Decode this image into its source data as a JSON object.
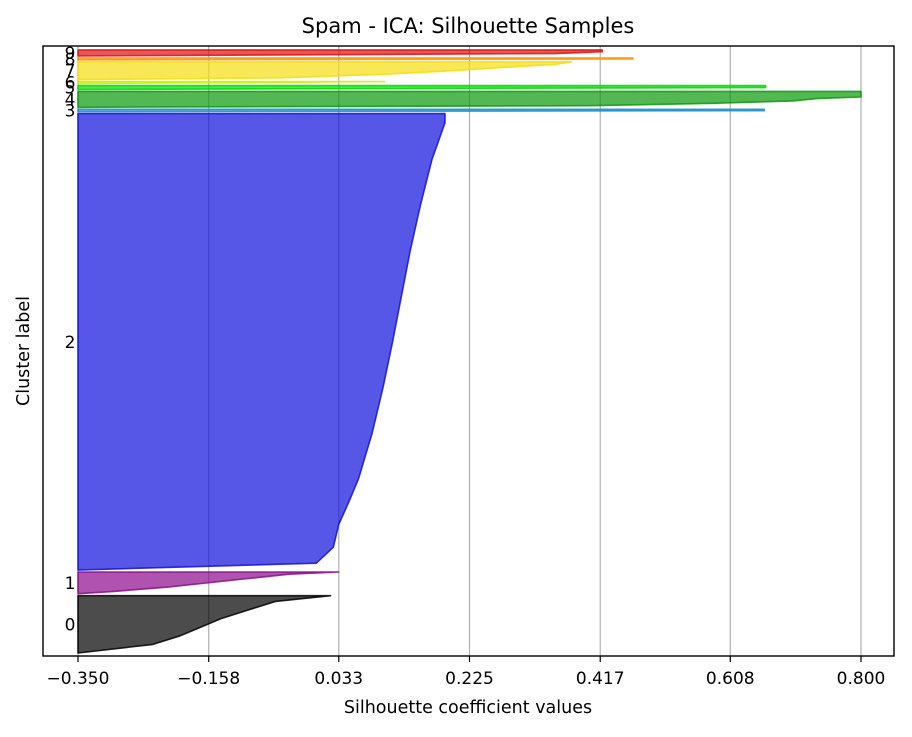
{
  "chart_data": {
    "type": "silhouette",
    "title": "Spam - ICA: Silhouette Samples",
    "xlabel": "Silhouette coefficient values",
    "ylabel": "Cluster label",
    "xlim": [
      -0.35,
      0.8
    ],
    "xticks": [
      "-0.350",
      "-0.158",
      "0.033",
      "0.225",
      "0.417",
      "0.608",
      "0.800"
    ],
    "xtick_values": [
      -0.35,
      -0.158,
      0.033,
      0.225,
      0.417,
      0.608,
      0.8
    ],
    "grid": "vertical",
    "clusters": [
      {
        "label": "0",
        "color": "#000000",
        "range": [
          0,
          290
        ],
        "profile": [
          [
            0,
            0.021
          ],
          [
            0.1,
            -0.06
          ],
          [
            0.25,
            -0.1
          ],
          [
            0.4,
            -0.14
          ],
          [
            0.55,
            -0.17
          ],
          [
            0.7,
            -0.2
          ],
          [
            0.85,
            -0.24
          ],
          [
            1,
            -0.35
          ]
        ]
      },
      {
        "label": "1",
        "color": "#8b0a8b",
        "range": [
          300,
          410
        ],
        "profile": [
          [
            0,
            0.033
          ],
          [
            0.1,
            -0.04
          ],
          [
            0.3,
            -0.1
          ],
          [
            0.5,
            -0.16
          ],
          [
            0.7,
            -0.22
          ],
          [
            0.9,
            -0.3
          ],
          [
            1,
            -0.35
          ]
        ]
      },
      {
        "label": "2",
        "color": "#1010dd",
        "range": [
          420,
          2730
        ],
        "profile": [
          [
            0,
            0.189
          ],
          [
            0.02,
            0.189
          ],
          [
            0.1,
            0.17
          ],
          [
            0.2,
            0.153
          ],
          [
            0.3,
            0.138
          ],
          [
            0.4,
            0.125
          ],
          [
            0.5,
            0.112
          ],
          [
            0.6,
            0.098
          ],
          [
            0.7,
            0.082
          ],
          [
            0.8,
            0.062
          ],
          [
            0.85,
            0.048
          ],
          [
            0.9,
            0.033
          ],
          [
            0.95,
            0.025
          ],
          [
            0.985,
            0.0
          ],
          [
            1,
            -0.35
          ]
        ]
      },
      {
        "label": "3",
        "color": "#1a8fcc",
        "range": [
          2740,
          2752
        ],
        "profile": [
          [
            0,
            0.658
          ],
          [
            0.6,
            0.658
          ],
          [
            1,
            -0.35
          ]
        ]
      },
      {
        "label": "4",
        "color": "#0a9a0a",
        "range": [
          2762,
          2842
        ],
        "profile": [
          [
            0,
            0.8
          ],
          [
            0.35,
            0.8
          ],
          [
            0.45,
            0.735
          ],
          [
            0.6,
            0.7
          ],
          [
            0.75,
            0.582
          ],
          [
            0.9,
            0.4
          ],
          [
            1,
            -0.35
          ]
        ]
      },
      {
        "label": "5",
        "color": "#00dd00",
        "range": [
          2852,
          2872
        ],
        "profile": [
          [
            0,
            0.66
          ],
          [
            0.5,
            0.66
          ],
          [
            1,
            -0.35
          ]
        ]
      },
      {
        "label": "6",
        "color": "#ccee00",
        "range": [
          2882,
          2892
        ],
        "profile": [
          [
            0,
            0.1
          ],
          [
            1,
            -0.35
          ]
        ]
      },
      {
        "label": "7",
        "color": "#f5dd10",
        "range": [
          2902,
          2992
        ],
        "profile": [
          [
            0,
            0.375
          ],
          [
            0.15,
            0.35
          ],
          [
            0.3,
            0.28
          ],
          [
            0.5,
            0.2
          ],
          [
            0.7,
            0.1
          ],
          [
            0.9,
            -0.05
          ],
          [
            1,
            -0.35
          ]
        ]
      },
      {
        "label": "8",
        "color": "#ff9900",
        "range": [
          3002,
          3012
        ],
        "profile": [
          [
            0,
            0.465
          ],
          [
            0.6,
            0.465
          ],
          [
            1,
            -0.35
          ]
        ]
      },
      {
        "label": "9",
        "color": "#dd1010",
        "range": [
          3022,
          3052
        ],
        "profile": [
          [
            0,
            0.42
          ],
          [
            0.3,
            0.42
          ],
          [
            0.6,
            0.35
          ],
          [
            1,
            -0.35
          ]
        ]
      }
    ],
    "ylim": [
      0,
      3062
    ]
  }
}
